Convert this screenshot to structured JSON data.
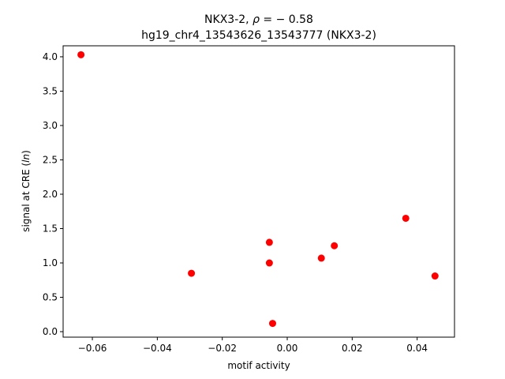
{
  "chart_data": {
    "type": "scatter",
    "title_line1_prefix": "NKX3-2, ",
    "title_line1_rho": "ρ",
    "title_line1_suffix": " = − 0.58",
    "title_line2": "hg19_chr4_13543626_13543777 (NKX3-2)",
    "xlabel": "motif activity",
    "ylabel_prefix": "signal at CRE (",
    "ylabel_italic": "ln",
    "ylabel_suffix": ")",
    "xlim": [
      -0.069,
      0.0515
    ],
    "ylim": [
      -0.08,
      4.16
    ],
    "x_ticks": [
      -0.06,
      -0.04,
      -0.02,
      0.0,
      0.02,
      0.04
    ],
    "x_tick_labels": [
      "−0.06",
      "−0.04",
      "−0.02",
      "0.00",
      "0.02",
      "0.04"
    ],
    "y_ticks": [
      0.0,
      0.5,
      1.0,
      1.5,
      2.0,
      2.5,
      3.0,
      3.5,
      4.0
    ],
    "y_tick_labels": [
      "0.0",
      "0.5",
      "1.0",
      "1.5",
      "2.0",
      "2.5",
      "3.0",
      "3.5",
      "4.0"
    ],
    "marker_color": "#ff0000",
    "points": [
      {
        "x": -0.0635,
        "y": 4.03
      },
      {
        "x": -0.0295,
        "y": 0.85
      },
      {
        "x": -0.0055,
        "y": 1.3
      },
      {
        "x": -0.0055,
        "y": 1.0
      },
      {
        "x": -0.0045,
        "y": 0.12
      },
      {
        "x": 0.0105,
        "y": 1.07
      },
      {
        "x": 0.0145,
        "y": 1.25
      },
      {
        "x": 0.0365,
        "y": 1.65
      },
      {
        "x": 0.0455,
        "y": 0.81
      }
    ]
  }
}
